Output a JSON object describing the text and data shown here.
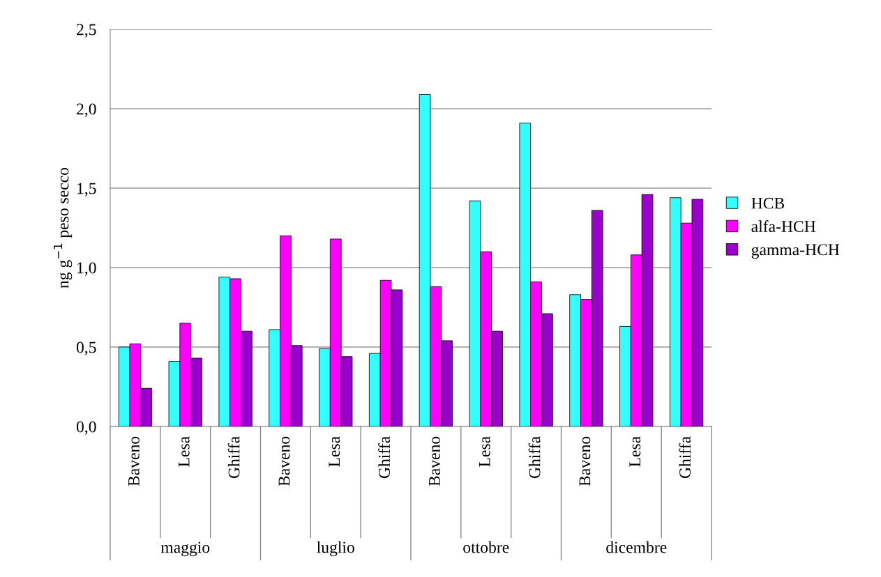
{
  "chart_data": {
    "type": "bar",
    "ylabel": "ng g$^{−1}$ peso secco",
    "categories": [
      "Baveno",
      "Lesa",
      "Ghiffa",
      "Baveno",
      "Lesa",
      "Ghiffa",
      "Baveno",
      "Lesa",
      "Ghiffa",
      "Baveno",
      "Lesa",
      "Ghiffa"
    ],
    "series": [
      {
        "name": "HCB",
        "color": "#33ffff",
        "values": [
          0.5,
          0.41,
          0.94,
          0.61,
          0.49,
          0.46,
          2.09,
          1.42,
          1.91,
          0.83,
          0.63,
          1.44
        ]
      },
      {
        "name": "alfa-HCH",
        "color": "#ff00ff",
        "values": [
          0.52,
          0.65,
          0.93,
          1.2,
          1.18,
          0.92,
          0.88,
          1.1,
          0.91,
          0.8,
          1.08,
          1.28
        ]
      },
      {
        "name": "gamma-HCH",
        "color": "#9900cc",
        "values": [
          0.24,
          0.43,
          0.6,
          0.51,
          0.44,
          0.86,
          0.54,
          0.6,
          0.71,
          1.36,
          1.46,
          1.43
        ]
      }
    ],
    "ylim": [
      0,
      2.5
    ],
    "yticks": [
      {
        "value": 0,
        "label": "0,0"
      },
      {
        "value": 0.5,
        "label": "0,5"
      },
      {
        "value": 1.0,
        "label": "1,0"
      },
      {
        "value": 1.5,
        "label": "1,5"
      },
      {
        "value": 2.0,
        "label": "2,0"
      },
      {
        "value": 2.5,
        "label": "2,5"
      }
    ],
    "grid": "y",
    "legend": "right",
    "annotations": [
      "maggio",
      "luglio",
      "ottobre",
      "dicembre"
    ]
  }
}
